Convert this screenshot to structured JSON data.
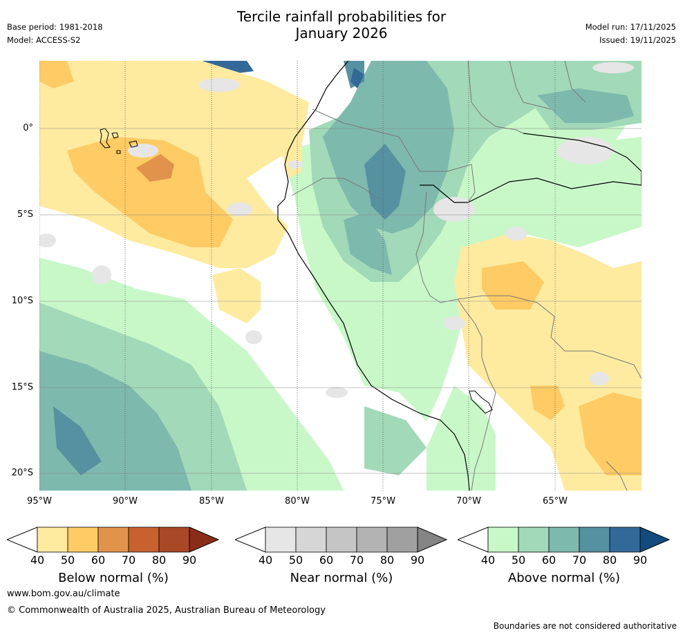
{
  "header": {
    "title_line1": "Tercile rainfall probabilities for",
    "title_line2": "January 2026",
    "base_period": "Base period: 1981-2018",
    "model": "Model: ACCESS-S2",
    "model_run": "Model run: 17/11/2025",
    "issued": "Issued: 19/11/2025"
  },
  "map": {
    "lat_labels": [
      "0°",
      "5°S",
      "10°S",
      "15°S",
      "20°S"
    ],
    "lon_labels": [
      "95°W",
      "90°W",
      "85°W",
      "80°W",
      "75°W",
      "70°W",
      "65°W"
    ]
  },
  "colorbars": [
    {
      "title": "Below normal (%)",
      "ticks": [
        "40",
        "50",
        "60",
        "70",
        "80",
        "90"
      ],
      "colors": [
        "#ffeba0",
        "#fecb64",
        "#e1924b",
        "#c7622f",
        "#a94826",
        "#8a2d18"
      ]
    },
    {
      "title": "Near normal (%)",
      "ticks": [
        "40",
        "50",
        "60",
        "70",
        "80",
        "90"
      ],
      "colors": [
        "#e6e6e6",
        "#d6d6d6",
        "#c5c5c5",
        "#b3b3b3",
        "#a0a0a0",
        "#848484"
      ]
    },
    {
      "title": "Above normal (%)",
      "ticks": [
        "40",
        "50",
        "60",
        "70",
        "80",
        "90"
      ],
      "colors": [
        "#c8f8c8",
        "#a2d9b8",
        "#7eb9ad",
        "#5591a0",
        "#336999",
        "#124c7e"
      ]
    }
  ],
  "footer": {
    "website": "www.bom.gov.au/climate",
    "copyright": "© Commonwealth of Australia 2025, Australian Bureau of Meteorology",
    "disclaimer": "Boundaries are not considered authoritative"
  }
}
